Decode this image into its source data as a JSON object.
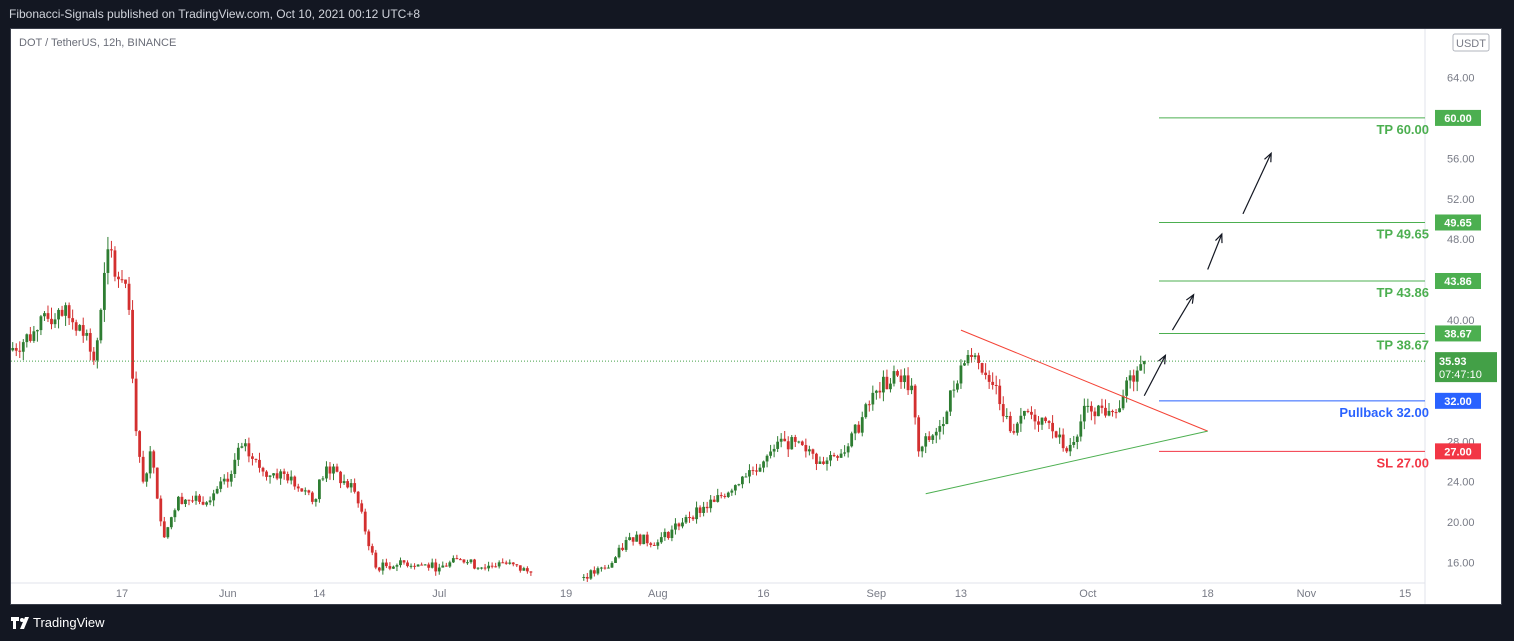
{
  "header": {
    "published": "Fibonacci-Signals published on TradingView.com, Oct 10, 2021 00:12 UTC+8"
  },
  "footer": {
    "brand": "TradingView"
  },
  "chart_data": {
    "type": "candlestick",
    "symbol": "DOT / TetherUS, 12h, BINANCE",
    "currency_badge": "USDT",
    "y_ticks": [
      "64.00",
      "60.00",
      "56.00",
      "52.00",
      "48.00",
      "44.00",
      "40.00",
      "36.00",
      "32.00",
      "28.00",
      "24.00",
      "20.00",
      "16.00"
    ],
    "ylim": [
      14.0,
      66.0
    ],
    "x_ticks": [
      "17",
      "Jun",
      "14",
      "Jul",
      "19",
      "Aug",
      "16",
      "Sep",
      "13",
      "Oct",
      "18",
      "Nov",
      "15"
    ],
    "colors": {
      "up": "#26a69a",
      "up_candle": "#2e7d32",
      "down": "#d32f2f",
      "target": "#4caf50",
      "pullback": "#2962ff",
      "stop": "#f23645",
      "last_price": "#43a047",
      "axis_text": "#131722",
      "grid_text": "#2a2e39"
    },
    "last_price": {
      "value": 35.93,
      "label": "35.93",
      "countdown": "07:47:10"
    },
    "levels": [
      {
        "name": "TP 60.00",
        "value": 60.0,
        "tag": "60.00",
        "kind": "target"
      },
      {
        "name": "TP 49.65",
        "value": 49.65,
        "tag": "49.65",
        "kind": "target"
      },
      {
        "name": "TP 43.86",
        "value": 43.86,
        "tag": "43.86",
        "kind": "target"
      },
      {
        "name": "TP 38.67",
        "value": 38.67,
        "tag": "38.67",
        "kind": "target"
      },
      {
        "name": "Pullback 32.00",
        "value": 32.0,
        "tag": "32.00",
        "kind": "pullback"
      },
      {
        "name": "SL 27.00",
        "value": 27.0,
        "tag": "27.00",
        "kind": "stop"
      }
    ],
    "triangle": {
      "upper": [
        [
          "Sep 13",
          39.0
        ],
        [
          "Oct 18",
          29.0
        ]
      ],
      "lower": [
        [
          "Sep 8",
          22.8
        ],
        [
          "Oct 18",
          29.0
        ]
      ]
    },
    "projection_arrows": [
      [
        [
          "Oct 9",
          32.5
        ],
        [
          "Oct 12",
          36.5
        ]
      ],
      [
        [
          "Oct 13",
          39.0
        ],
        [
          "Oct 16",
          42.5
        ]
      ],
      [
        [
          "Oct 18",
          45.0
        ],
        [
          "Oct 20",
          48.5
        ]
      ],
      [
        [
          "Oct 23",
          50.5
        ],
        [
          "Oct 27",
          56.5
        ]
      ]
    ],
    "price_path": [
      [
        "May 1",
        37.0
      ],
      [
        "May 5",
        39.0
      ],
      [
        "May 8",
        41.0
      ],
      [
        "May 11",
        39.5
      ],
      [
        "May 13",
        36.0
      ],
      [
        "May 14",
        41.0
      ],
      [
        "May 15",
        47.0
      ],
      [
        "May 17",
        44.0
      ],
      [
        "May 18",
        41.0
      ],
      [
        "May 19",
        29.0
      ],
      [
        "May 20",
        24.0
      ],
      [
        "May 21",
        27.0
      ],
      [
        "May 23",
        18.5
      ],
      [
        "May 25",
        22.5
      ],
      [
        "May 28",
        22.0
      ],
      [
        "Jun 1",
        24.0
      ],
      [
        "Jun 3",
        27.5
      ],
      [
        "Jun 6",
        25.0
      ],
      [
        "Jun 10",
        24.5
      ],
      [
        "Jun 13",
        22.0
      ],
      [
        "Jun 15",
        25.5
      ],
      [
        "Jun 19",
        23.0
      ],
      [
        "Jun 22",
        15.5
      ],
      [
        "Jun 26",
        16.0
      ],
      [
        "Jul 1",
        15.5
      ],
      [
        "Jul 4",
        16.3
      ],
      [
        "Jul 7",
        15.5
      ],
      [
        "Jul 10",
        16.0
      ],
      [
        "Jul 14",
        15.0
      ],
      null,
      [
        "Jul 21",
        14.5
      ],
      [
        "Jul 25",
        15.5
      ],
      [
        "Jul 28",
        18.5
      ],
      [
        "Aug 1",
        18.0
      ],
      [
        "Aug 5",
        20.5
      ],
      [
        "Aug 9",
        22.0
      ],
      [
        "Aug 13",
        24.5
      ],
      [
        "Aug 16",
        26.0
      ],
      [
        "Aug 19",
        28.0
      ],
      [
        "Aug 22",
        27.0
      ],
      [
        "Aug 24",
        26.0
      ],
      [
        "Aug 28",
        27.5
      ],
      [
        "Sep 1",
        33.0
      ],
      [
        "Sep 4",
        34.5
      ],
      [
        "Sep 6",
        33.5
      ],
      [
        "Sep 7",
        27.0
      ],
      [
        "Sep 10",
        29.5
      ],
      [
        "Sep 13",
        35.5
      ],
      [
        "Sep 15",
        36.5
      ],
      [
        "Sep 18",
        33.5
      ],
      [
        "Sep 20",
        29.0
      ],
      [
        "Sep 22",
        31.0
      ],
      [
        "Sep 25",
        30.0
      ],
      [
        "Sep 28",
        27.0
      ],
      [
        "Oct 1",
        31.5
      ],
      [
        "Oct 4",
        31.0
      ],
      [
        "Oct 6",
        32.5
      ],
      [
        "Oct 8",
        35.0
      ],
      [
        "Oct 9",
        35.93
      ]
    ]
  }
}
